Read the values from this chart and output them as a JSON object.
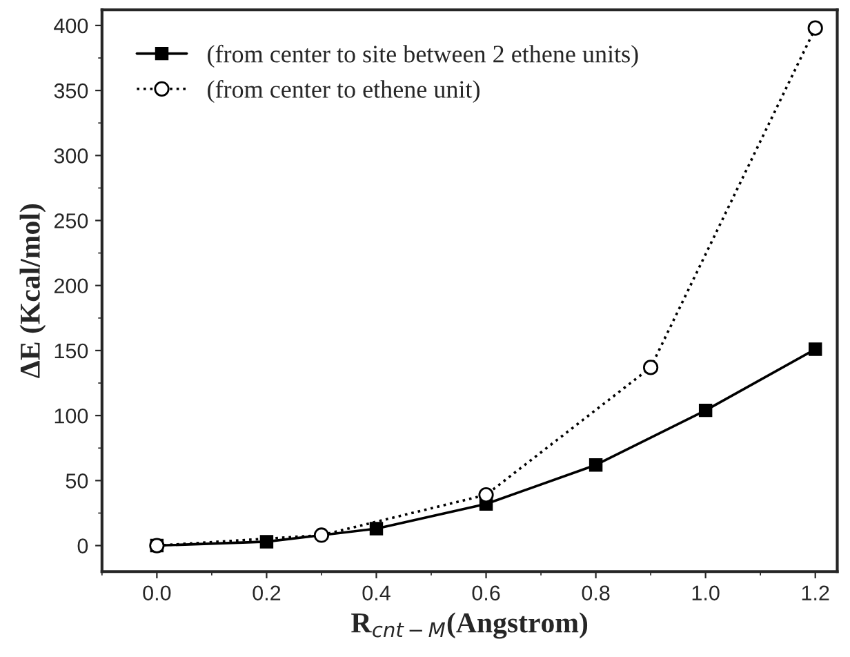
{
  "chart_data": {
    "type": "line",
    "xlabel": "R$_{cnt−M}$(Angstrom)",
    "ylabel": "ΔE (Kcal/mol)",
    "series": [
      {
        "name": "(from center to site between 2 ethene units)",
        "color": "#000000",
        "marker": "square",
        "line_style": "solid",
        "x": [
          0.0,
          0.2,
          0.4,
          0.6,
          0.8,
          1.0,
          1.2
        ],
        "values": [
          0,
          3,
          13,
          32,
          62,
          104,
          151
        ]
      },
      {
        "name": "(from center to ethene unit)",
        "color": "#000000",
        "marker": "circle",
        "line_style": "dotted",
        "x": [
          0.0,
          0.3,
          0.6,
          0.9,
          1.2
        ],
        "values": [
          0,
          8,
          39,
          137,
          398
        ]
      }
    ],
    "xlim": [
      -0.1,
      1.24
    ],
    "xticks": [
      {
        "value": 0,
        "label": "0.0"
      },
      0.2,
      0.4,
      0.6,
      0.8,
      {
        "value": 1,
        "label": "1.0"
      },
      1.2
    ],
    "ylim": [
      -20,
      412
    ],
    "yticks": [
      0,
      50,
      100,
      150,
      200,
      250,
      300,
      350,
      400
    ],
    "grid": false,
    "legend": "top left"
  }
}
